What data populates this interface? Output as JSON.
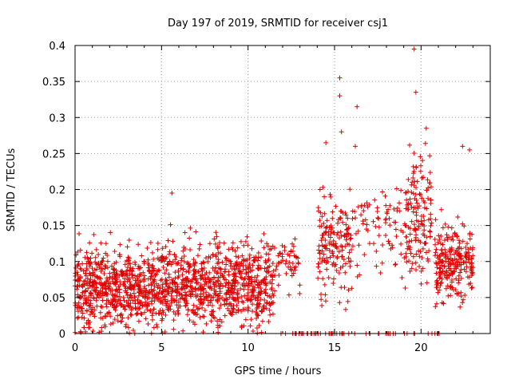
{
  "chart_data": {
    "type": "scatter",
    "title": "Day 197 of 2019, SRMTID for receiver csj1",
    "xlabel": "GPS time / hours",
    "ylabel": "SRMTID / TECUs",
    "xlim": [
      0,
      24
    ],
    "ylim": [
      0,
      0.4
    ],
    "x_ticks": [
      0,
      5,
      10,
      15,
      20
    ],
    "y_ticks": [
      0,
      0.05,
      0.1,
      0.15,
      0.2,
      0.25,
      0.3,
      0.35,
      0.4
    ],
    "x_tick_labels": [
      "0",
      "5",
      "10",
      "15",
      "20"
    ],
    "y_tick_labels": [
      "0",
      "0.05",
      "0.1",
      "0.15",
      "0.2",
      "0.25",
      "0.3",
      "0.35",
      "0.4"
    ],
    "grid": true,
    "marker": "+",
    "color": "#e00000",
    "clusters": [
      {
        "x_range": [
          0.0,
          11.5
        ],
        "y_mean": 0.065,
        "y_spread": 0.045,
        "count": 1400,
        "y_max": 0.2
      },
      {
        "x_range": [
          11.5,
          13.0
        ],
        "y_mean": 0.1,
        "y_spread": 0.03,
        "count": 50,
        "y_max": 0.15
      },
      {
        "x_range": [
          14.0,
          16.0
        ],
        "y_mean": 0.12,
        "y_spread": 0.06,
        "count": 160,
        "y_max": 0.36
      },
      {
        "x_range": [
          16.0,
          18.0
        ],
        "y_mean": 0.14,
        "y_spread": 0.05,
        "count": 50,
        "y_max": 0.32
      },
      {
        "x_range": [
          18.0,
          19.0
        ],
        "y_mean": 0.15,
        "y_spread": 0.05,
        "count": 30,
        "y_max": 0.23
      },
      {
        "x_range": [
          19.0,
          20.6
        ],
        "y_mean": 0.16,
        "y_spread": 0.07,
        "count": 150,
        "y_max": 0.4
      },
      {
        "x_range": [
          20.8,
          23.0
        ],
        "y_mean": 0.1,
        "y_spread": 0.045,
        "count": 240,
        "y_max": 0.26
      },
      {
        "x_range": [
          11.5,
          21.5
        ],
        "y_mean": 0.0,
        "y_spread": 0.0,
        "count": 60,
        "y_max": 0.0
      }
    ],
    "notable_points": [
      {
        "x": 19.6,
        "y": 0.395
      },
      {
        "x": 15.3,
        "y": 0.355
      },
      {
        "x": 15.3,
        "y": 0.33
      },
      {
        "x": 16.3,
        "y": 0.315
      },
      {
        "x": 19.7,
        "y": 0.335
      },
      {
        "x": 20.3,
        "y": 0.285
      },
      {
        "x": 15.4,
        "y": 0.28
      },
      {
        "x": 14.5,
        "y": 0.265
      },
      {
        "x": 16.2,
        "y": 0.26
      },
      {
        "x": 22.4,
        "y": 0.26
      },
      {
        "x": 22.8,
        "y": 0.255
      },
      {
        "x": 5.6,
        "y": 0.195
      }
    ]
  }
}
